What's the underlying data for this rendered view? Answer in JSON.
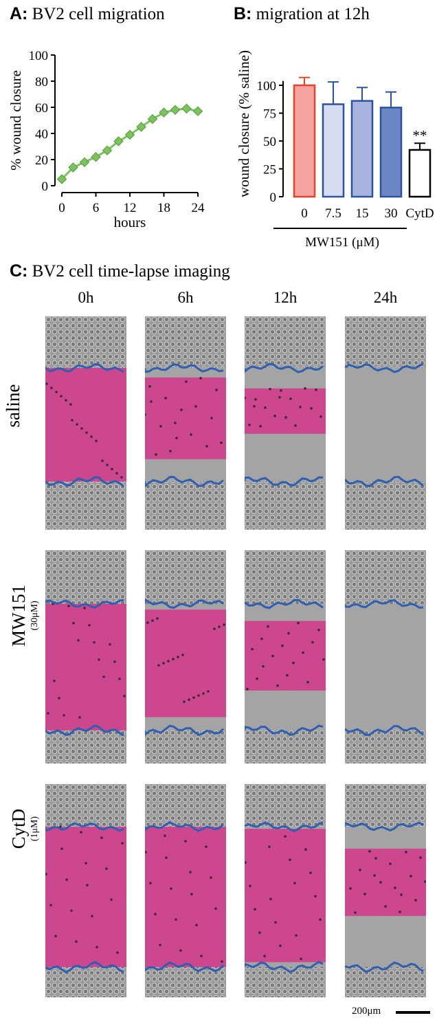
{
  "panelA": {
    "letter": "A:",
    "title": "BV2 cell migration",
    "chart_data": {
      "type": "line",
      "x": [
        0,
        2,
        4,
        6,
        8,
        10,
        12,
        14,
        16,
        18,
        20,
        22,
        24
      ],
      "series": [
        {
          "values": [
            5,
            14,
            18,
            22,
            27,
            34,
            39,
            45,
            51,
            56,
            58,
            59,
            57
          ]
        }
      ],
      "xlabel": "hours",
      "ylabel": "% wound closure",
      "xticks": [
        "0",
        "6",
        "12",
        "18",
        "24"
      ],
      "yticks": [
        "0",
        "20",
        "40",
        "60",
        "80",
        "100"
      ],
      "xlim": [
        0,
        24
      ],
      "ylim": [
        0,
        100
      ],
      "grid": false,
      "marker": "diamond",
      "color": "#7dc35b",
      "marker_edge": "#4f9a3a"
    }
  },
  "panelB": {
    "letter": "B:",
    "title": "migration at 12h",
    "chart_data": {
      "type": "bar",
      "categories": [
        "0",
        "7.5",
        "15",
        "30",
        "CytD"
      ],
      "values": [
        100,
        83,
        86,
        80,
        42
      ],
      "errors": [
        7,
        20,
        12,
        14,
        6
      ],
      "fills": [
        "#f7a3a1",
        "#d7dcf0",
        "#a8b4dd",
        "#6a86c4",
        "#ffffff"
      ],
      "edges": [
        "#e8412c",
        "#2a52a0",
        "#2a52a0",
        "#2a52a0",
        "#000000"
      ],
      "ylabel": "wound closure (% saline)",
      "yticks": [
        "0",
        "25",
        "50",
        "75",
        "100"
      ],
      "ylim": [
        0,
        110
      ],
      "group_label": "MW151 (μM)",
      "annotation": "**",
      "annotation_category": "CytD"
    }
  },
  "panelC": {
    "letter": "C:",
    "title": "BV2 cell time-lapse imaging",
    "columns": [
      "0h",
      "6h",
      "12h",
      "24h"
    ],
    "rows": [
      {
        "label": "saline",
        "sublabel": ""
      },
      {
        "label": "MW151",
        "sublabel": "(30μM)"
      },
      {
        "label": "CytD",
        "sublabel": "(1μM)"
      }
    ],
    "wound_open_fraction": [
      [
        1.0,
        0.72,
        0.4,
        0.0
      ],
      [
        1.0,
        0.85,
        0.55,
        0.0
      ],
      [
        1.0,
        1.0,
        0.95,
        0.48
      ]
    ],
    "colors": {
      "wound": "#cf3f8c",
      "edge": "#2f5fb0",
      "cells": "#8e8e8e"
    },
    "scale_bar": "200μm"
  }
}
